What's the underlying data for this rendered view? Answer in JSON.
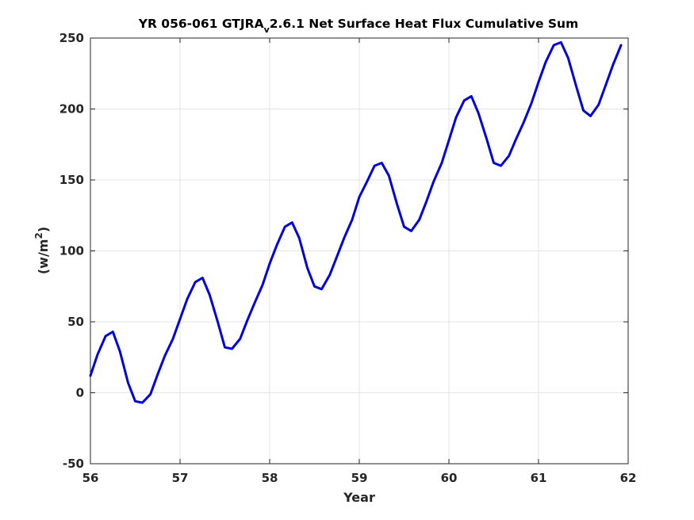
{
  "chart_data": {
    "type": "line",
    "title": {
      "main": "YR 056-061 GTJRA",
      "subscript": "v",
      "rest": "2.6.1 Net Surface Heat Flux  Cumulative Sum"
    },
    "xlabel": "Year",
    "ylabel": {
      "base": "(w/m",
      "superscript": "2",
      "end": ")"
    },
    "xlim": [
      56,
      62
    ],
    "ylim": [
      -50,
      250
    ],
    "xticks": [
      56,
      57,
      58,
      59,
      60,
      61,
      62
    ],
    "yticks": [
      -50,
      0,
      50,
      100,
      150,
      200,
      250
    ],
    "xtick_labels": [
      "56",
      "57",
      "58",
      "59",
      "60",
      "61",
      "62"
    ],
    "ytick_labels": [
      "-50",
      "0",
      "50",
      "100",
      "150",
      "200",
      "250"
    ],
    "grid": true,
    "colors": {
      "series": "#0000dd",
      "axes": "#262626",
      "grid": "#dcdcdc"
    },
    "series": [
      {
        "x": [
          56.0,
          56.08,
          56.17,
          56.25,
          56.33,
          56.42,
          56.5,
          56.58,
          56.67,
          56.75,
          56.83,
          56.92,
          57.0,
          57.08,
          57.17,
          57.25,
          57.33,
          57.42,
          57.5,
          57.58,
          57.67,
          57.75,
          57.83,
          57.92,
          58.0,
          58.08,
          58.17,
          58.25,
          58.33,
          58.42,
          58.5,
          58.58,
          58.67,
          58.75,
          58.83,
          58.92,
          59.0,
          59.08,
          59.17,
          59.25,
          59.33,
          59.42,
          59.5,
          59.58,
          59.67,
          59.75,
          59.83,
          59.92,
          60.0,
          60.08,
          60.17,
          60.25,
          60.33,
          60.42,
          60.5,
          60.58,
          60.67,
          60.75,
          60.83,
          60.92,
          61.0,
          61.08,
          61.17,
          61.25,
          61.33,
          61.42,
          61.5,
          61.58,
          61.67,
          61.75,
          61.83,
          61.92
        ],
        "y": [
          12,
          27,
          40,
          43,
          29,
          7,
          -6,
          -7,
          -1,
          13,
          26,
          38,
          52,
          66,
          78,
          81,
          69,
          50,
          32,
          31,
          38,
          51,
          63,
          76,
          91,
          104,
          117,
          120,
          109,
          88,
          75,
          73,
          83,
          96,
          109,
          122,
          138,
          148,
          160,
          162,
          153,
          133,
          117,
          114,
          122,
          135,
          149,
          162,
          178,
          194,
          206,
          209,
          197,
          179,
          162,
          160,
          167,
          179,
          190,
          204,
          219,
          233,
          245,
          247,
          236,
          216,
          199,
          195,
          203,
          217,
          231,
          245
        ]
      }
    ]
  }
}
